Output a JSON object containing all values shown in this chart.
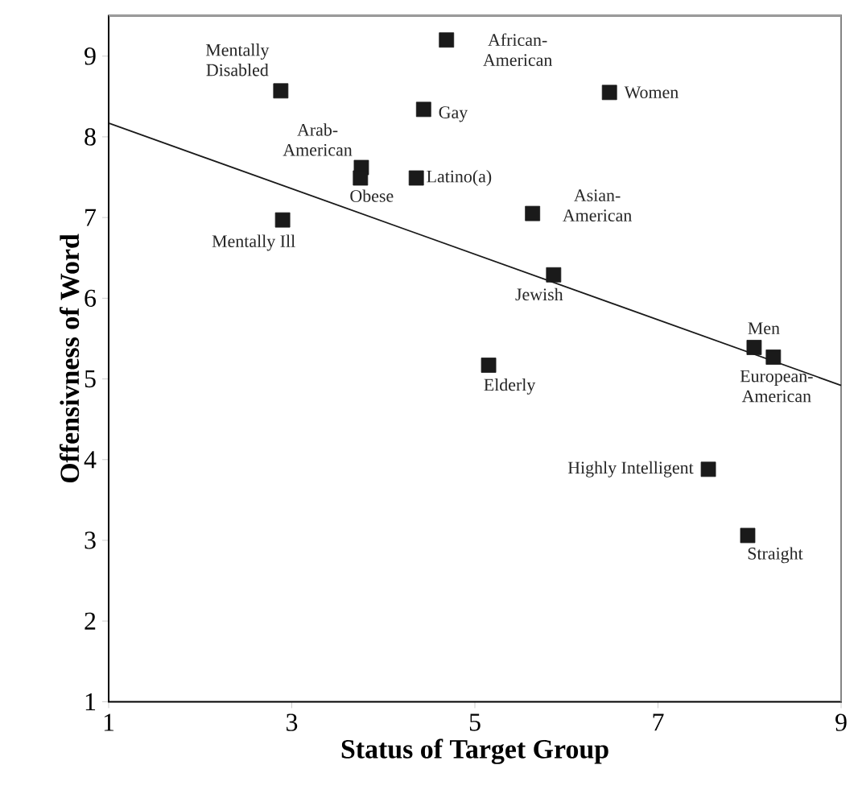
{
  "chart_data": {
    "type": "scatter",
    "xlabel": "Status of Target Group",
    "ylabel": "Offensivness of Word",
    "xlim": [
      1,
      9
    ],
    "ylim": [
      1,
      9.5
    ],
    "xticks": [
      1,
      3,
      5,
      7,
      9
    ],
    "yticks": [
      1,
      2,
      3,
      4,
      5,
      6,
      7,
      8,
      9
    ],
    "grid": false,
    "series": [
      {
        "marker": "square",
        "color": "#1a1a1a",
        "x": [
          2.88,
          4.69,
          4.44,
          6.47,
          3.76,
          3.75,
          4.36,
          2.9,
          5.63,
          5.86,
          8.05,
          8.26,
          5.15,
          7.55,
          7.98
        ],
        "values": [
          8.57,
          9.2,
          8.34,
          8.55,
          7.62,
          7.49,
          7.49,
          6.97,
          7.05,
          6.29,
          5.39,
          5.27,
          5.17,
          3.88,
          3.06
        ]
      },
      {
        "type": "line",
        "marker": "none",
        "color": "#1a1a1a",
        "x": [
          1,
          9
        ],
        "values": [
          8.17,
          4.92
        ]
      }
    ],
    "annotations": [
      {
        "text": "Mentally Disabled",
        "x": 2.88,
        "y": 8.57
      },
      {
        "text": "African-American",
        "x": 4.69,
        "y": 9.2
      },
      {
        "text": "Gay",
        "x": 4.44,
        "y": 8.34
      },
      {
        "text": "Women",
        "x": 6.47,
        "y": 8.55
      },
      {
        "text": "Arab-American",
        "x": 3.76,
        "y": 7.62
      },
      {
        "text": "Obese",
        "x": 3.75,
        "y": 7.49
      },
      {
        "text": "Latino(a)",
        "x": 4.36,
        "y": 7.49
      },
      {
        "text": "Mentally Ill",
        "x": 2.9,
        "y": 6.97
      },
      {
        "text": "Asian-American",
        "x": 5.63,
        "y": 7.05
      },
      {
        "text": "Jewish",
        "x": 5.86,
        "y": 6.29
      },
      {
        "text": "Men",
        "x": 8.05,
        "y": 5.39
      },
      {
        "text": "European-American",
        "x": 8.26,
        "y": 5.27
      },
      {
        "text": "Elderly",
        "x": 5.15,
        "y": 5.17
      },
      {
        "text": "Highly Intelligent",
        "x": 7.55,
        "y": 3.88
      },
      {
        "text": "Straight",
        "x": 7.98,
        "y": 3.06
      }
    ]
  }
}
